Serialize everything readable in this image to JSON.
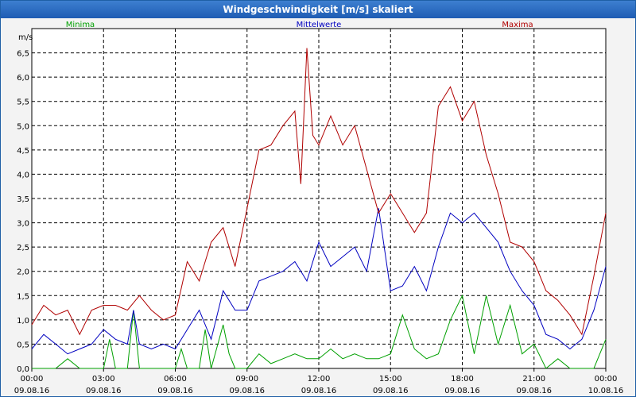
{
  "window": {
    "title": "Windgeschwindigkeit [m/s] skaliert"
  },
  "chart_data": {
    "type": "line",
    "ylabel": "m/s",
    "ylim": [
      0,
      7
    ],
    "yticks": [
      "0,0",
      "0,5",
      "1,0",
      "1,5",
      "2,0",
      "2,5",
      "3,0",
      "3,5",
      "4,0",
      "4,5",
      "5,0",
      "5,5",
      "6,0",
      "6,5"
    ],
    "xlim_hours": [
      0,
      24
    ],
    "xticks": [
      {
        "time": "00:00",
        "date": "09.08.16"
      },
      {
        "time": "03:00",
        "date": "09.08.16"
      },
      {
        "time": "06:00",
        "date": "09.08.16"
      },
      {
        "time": "09:00",
        "date": "09.08.16"
      },
      {
        "time": "12:00",
        "date": "09.08.16"
      },
      {
        "time": "15:00",
        "date": "09.08.16"
      },
      {
        "time": "18:00",
        "date": "09.08.16"
      },
      {
        "time": "21:00",
        "date": "09.08.16"
      },
      {
        "time": "00:00",
        "date": "10.08.16"
      }
    ],
    "grid": true,
    "legend_position": "top",
    "series": [
      {
        "name": "Minima",
        "color": "#00a000",
        "x": [
          0,
          1,
          1.5,
          2,
          3,
          3.25,
          3.5,
          4,
          4.25,
          4.5,
          5,
          5.5,
          6,
          6.25,
          6.5,
          7,
          7.25,
          7.5,
          8,
          8.25,
          8.5,
          9,
          9.5,
          10,
          10.5,
          11,
          11.5,
          12,
          12.5,
          13,
          13.5,
          14,
          14.5,
          15,
          15.5,
          16,
          16.5,
          17,
          17.5,
          18,
          18.5,
          19,
          19.5,
          20,
          20.5,
          21,
          21.5,
          22,
          22.5,
          23,
          23.5,
          24
        ],
        "values": [
          0,
          0,
          0.2,
          0,
          0,
          0.6,
          0,
          0,
          1.2,
          0,
          0,
          0,
          0,
          0.4,
          0,
          0,
          0.8,
          0,
          0.9,
          0.3,
          0,
          0,
          0.3,
          0.1,
          0.2,
          0.3,
          0.2,
          0.2,
          0.4,
          0.2,
          0.3,
          0.2,
          0.2,
          0.3,
          1.1,
          0.4,
          0.2,
          0.3,
          1.0,
          1.5,
          0.3,
          1.5,
          0.5,
          1.3,
          0.3,
          0.5,
          0,
          0.2,
          0,
          0,
          0,
          0.6
        ]
      },
      {
        "name": "Mittelwerte",
        "color": "#0000c0",
        "x": [
          0,
          0.5,
          1,
          1.5,
          2,
          2.5,
          3,
          3.5,
          4,
          4.25,
          4.5,
          5,
          5.5,
          6,
          6.5,
          7,
          7.5,
          8,
          8.5,
          9,
          9.5,
          10,
          10.5,
          11,
          11.5,
          12,
          12.5,
          13,
          13.5,
          14,
          14.5,
          15,
          15.5,
          16,
          16.5,
          17,
          17.5,
          18,
          18.5,
          19,
          19.5,
          20,
          20.5,
          21,
          21.5,
          22,
          22.5,
          23,
          23.5,
          24
        ],
        "values": [
          0.4,
          0.7,
          0.5,
          0.3,
          0.4,
          0.5,
          0.8,
          0.6,
          0.5,
          1.2,
          0.5,
          0.4,
          0.5,
          0.4,
          0.8,
          1.2,
          0.6,
          1.6,
          1.2,
          1.2,
          1.8,
          1.9,
          2.0,
          2.2,
          1.8,
          2.6,
          2.1,
          2.3,
          2.5,
          2.0,
          3.3,
          1.6,
          1.7,
          2.1,
          1.6,
          2.5,
          3.2,
          3.0,
          3.2,
          2.9,
          2.6,
          2.0,
          1.6,
          1.3,
          0.7,
          0.6,
          0.4,
          0.6,
          1.2,
          2.1
        ]
      },
      {
        "name": "Maxima",
        "color": "#b00000",
        "x": [
          0,
          0.5,
          1,
          1.5,
          2,
          2.5,
          3,
          3.5,
          4,
          4.5,
          5,
          5.5,
          6,
          6.5,
          7,
          7.5,
          8,
          8.5,
          9,
          9.5,
          10,
          10.5,
          11,
          11.25,
          11.5,
          11.75,
          12,
          12.5,
          13,
          13.5,
          14,
          14.5,
          15,
          15.5,
          16,
          16.5,
          17,
          17.5,
          18,
          18.5,
          19,
          19.5,
          20,
          20.5,
          21,
          21.5,
          22,
          22.5,
          23,
          23.5,
          24
        ],
        "values": [
          0.9,
          1.3,
          1.1,
          1.2,
          0.7,
          1.2,
          1.3,
          1.3,
          1.2,
          1.5,
          1.2,
          1.0,
          1.1,
          2.2,
          1.8,
          2.6,
          2.9,
          2.1,
          3.3,
          4.5,
          4.6,
          5.0,
          5.3,
          3.8,
          6.6,
          4.8,
          4.6,
          5.2,
          4.6,
          5.0,
          4.1,
          3.2,
          3.6,
          3.2,
          2.8,
          3.2,
          5.4,
          5.8,
          5.1,
          5.5,
          4.4,
          3.6,
          2.6,
          2.5,
          2.2,
          1.6,
          1.4,
          1.1,
          0.7,
          1.9,
          3.2
        ]
      }
    ]
  }
}
